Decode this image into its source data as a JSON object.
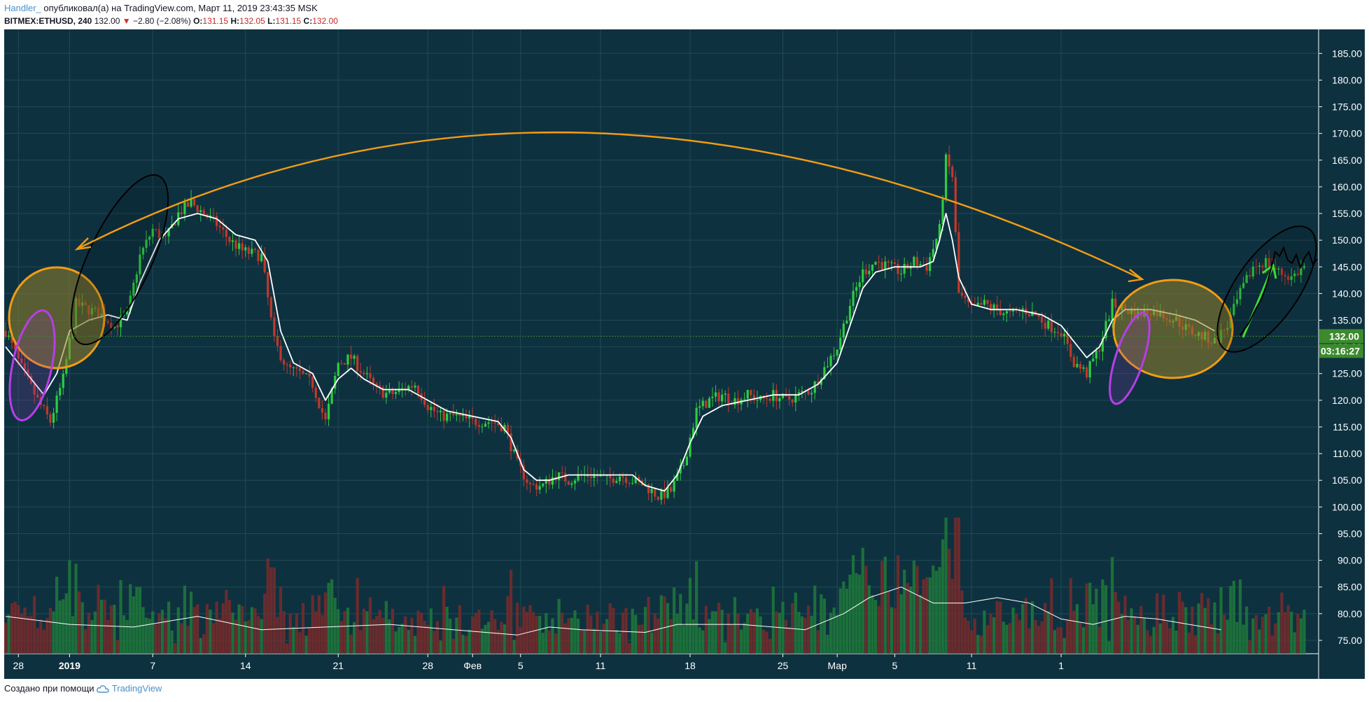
{
  "header": {
    "author": "Handler_",
    "published": "опубликовал(а) на TradingView.com, Март 11, 2019 23:43:35 MSK",
    "symbol": "BITMEX:ETHUSD, 240",
    "last": "132.00",
    "change_arrow": "▼",
    "change": "−2.80 (−2.08%)",
    "o_label": "O:",
    "o": "131.15",
    "h_label": "H:",
    "h": "132.05",
    "l_label": "L:",
    "l": "131.15",
    "c_label": "C:",
    "c": "132.00"
  },
  "footer": {
    "created_with": "Создано при помощи",
    "brand": "TradingView",
    "brand_icon": "tradingview-cloud-icon"
  },
  "colors": {
    "background": "#0e3140",
    "grid": "#1e4a55",
    "up": "#26a69a",
    "up_candle": "#2ecc40",
    "down_candle": "#c0392b",
    "ma_line": "#ffffff",
    "arc": "#f39c12",
    "price_tag": "#3c8a2e",
    "ellipse_orange": "#f39c12",
    "ellipse_purple": "#b73ee6",
    "ellipse_black": "#000000",
    "arrow": "#3ddc37"
  },
  "chart_data": {
    "type": "candlestick",
    "interval": "240",
    "y_ticks": [
      "185.00",
      "180.00",
      "175.00",
      "170.00",
      "165.00",
      "160.00",
      "155.00",
      "150.00",
      "145.00",
      "140.00",
      "135.00",
      "130.00",
      "125.00",
      "120.00",
      "115.00",
      "110.00",
      "105.00",
      "100.00",
      "95.00",
      "90.00",
      "85.00",
      "80.00",
      "75.00"
    ],
    "ylim": [
      72.5,
      189.5
    ],
    "x_ticks": [
      "28",
      "2019",
      "7",
      "14",
      "21",
      "28",
      "Фев",
      "5",
      "11",
      "18",
      "25",
      "Мар",
      "5",
      "11",
      "1"
    ],
    "current_price": "132.00",
    "countdown": "03:16:27",
    "price_path": [
      [
        0,
        133
      ],
      [
        5,
        126
      ],
      [
        10,
        120
      ],
      [
        14,
        116
      ],
      [
        18,
        124
      ],
      [
        22,
        138
      ],
      [
        26,
        137
      ],
      [
        30,
        136
      ],
      [
        34,
        134
      ],
      [
        38,
        136
      ],
      [
        42,
        147
      ],
      [
        46,
        152
      ],
      [
        50,
        150
      ],
      [
        54,
        155
      ],
      [
        58,
        157
      ],
      [
        62,
        155
      ],
      [
        66,
        153
      ],
      [
        70,
        150
      ],
      [
        74,
        148
      ],
      [
        80,
        147
      ],
      [
        84,
        131
      ],
      [
        88,
        126
      ],
      [
        92,
        125
      ],
      [
        96,
        123
      ],
      [
        100,
        116
      ],
      [
        104,
        127
      ],
      [
        108,
        128
      ],
      [
        112,
        125
      ],
      [
        116,
        122
      ],
      [
        120,
        121
      ],
      [
        124,
        122
      ],
      [
        128,
        123
      ],
      [
        132,
        119
      ],
      [
        136,
        117
      ],
      [
        140,
        117
      ],
      [
        146,
        116
      ],
      [
        152,
        116
      ],
      [
        156,
        115
      ],
      [
        160,
        108
      ],
      [
        164,
        104
      ],
      [
        168,
        104
      ],
      [
        172,
        106
      ],
      [
        176,
        105
      ],
      [
        180,
        106
      ],
      [
        184,
        106
      ],
      [
        188,
        105
      ],
      [
        192,
        106
      ],
      [
        196,
        105
      ],
      [
        200,
        104
      ],
      [
        204,
        102
      ],
      [
        208,
        103
      ],
      [
        212,
        108
      ],
      [
        216,
        118
      ],
      [
        220,
        120
      ],
      [
        224,
        121
      ],
      [
        228,
        120
      ],
      [
        232,
        121
      ],
      [
        236,
        120
      ],
      [
        240,
        121
      ],
      [
        244,
        120
      ],
      [
        248,
        121
      ],
      [
        252,
        122
      ],
      [
        256,
        126
      ],
      [
        260,
        130
      ],
      [
        264,
        138
      ],
      [
        268,
        144
      ],
      [
        272,
        146
      ],
      [
        276,
        145
      ],
      [
        280,
        144
      ],
      [
        284,
        146
      ],
      [
        288,
        145
      ],
      [
        292,
        152
      ],
      [
        294,
        165
      ],
      [
        296,
        162
      ],
      [
        298,
        140
      ],
      [
        302,
        137
      ],
      [
        306,
        138
      ],
      [
        310,
        137
      ],
      [
        314,
        136
      ],
      [
        318,
        137
      ],
      [
        322,
        136
      ],
      [
        326,
        134
      ],
      [
        330,
        133
      ],
      [
        334,
        127
      ],
      [
        338,
        125
      ],
      [
        342,
        130
      ],
      [
        346,
        138
      ],
      [
        350,
        137
      ],
      [
        354,
        136
      ],
      [
        358,
        137
      ],
      [
        362,
        136
      ],
      [
        366,
        135
      ],
      [
        370,
        133
      ],
      [
        374,
        132
      ],
      [
        378,
        131
      ],
      [
        382,
        134
      ],
      [
        386,
        140
      ],
      [
        390,
        145
      ],
      [
        394,
        146
      ],
      [
        398,
        144
      ],
      [
        402,
        143
      ],
      [
        406,
        145
      ]
    ],
    "ma_path": [
      [
        0,
        130
      ],
      [
        8,
        124
      ],
      [
        12,
        121
      ],
      [
        16,
        125
      ],
      [
        20,
        133
      ],
      [
        26,
        135
      ],
      [
        32,
        136
      ],
      [
        38,
        135
      ],
      [
        42,
        142
      ],
      [
        48,
        150
      ],
      [
        54,
        154
      ],
      [
        60,
        155
      ],
      [
        66,
        154
      ],
      [
        72,
        151
      ],
      [
        78,
        150
      ],
      [
        82,
        146
      ],
      [
        86,
        133
      ],
      [
        90,
        127
      ],
      [
        96,
        125
      ],
      [
        100,
        120
      ],
      [
        104,
        124
      ],
      [
        108,
        126
      ],
      [
        112,
        124
      ],
      [
        118,
        122
      ],
      [
        126,
        122
      ],
      [
        132,
        120
      ],
      [
        138,
        118
      ],
      [
        146,
        117
      ],
      [
        154,
        116
      ],
      [
        158,
        113
      ],
      [
        162,
        107
      ],
      [
        166,
        105
      ],
      [
        170,
        105
      ],
      [
        176,
        106
      ],
      [
        184,
        106
      ],
      [
        190,
        106
      ],
      [
        196,
        106
      ],
      [
        200,
        104
      ],
      [
        206,
        103
      ],
      [
        210,
        106
      ],
      [
        214,
        112
      ],
      [
        218,
        117
      ],
      [
        224,
        119
      ],
      [
        232,
        120
      ],
      [
        240,
        121
      ],
      [
        248,
        121
      ],
      [
        254,
        123
      ],
      [
        260,
        127
      ],
      [
        264,
        134
      ],
      [
        268,
        141
      ],
      [
        272,
        144
      ],
      [
        278,
        145
      ],
      [
        286,
        145
      ],
      [
        290,
        146
      ],
      [
        292,
        150
      ],
      [
        294,
        155
      ],
      [
        296,
        150
      ],
      [
        298,
        143
      ],
      [
        302,
        138
      ],
      [
        308,
        137
      ],
      [
        316,
        137
      ],
      [
        324,
        136
      ],
      [
        330,
        134
      ],
      [
        334,
        131
      ],
      [
        338,
        128
      ],
      [
        342,
        130
      ],
      [
        346,
        135
      ],
      [
        350,
        137
      ],
      [
        358,
        137
      ],
      [
        366,
        136
      ],
      [
        372,
        135
      ],
      [
        378,
        133
      ]
    ],
    "volume_ma_path": [
      [
        0,
        79.5
      ],
      [
        20,
        78
      ],
      [
        40,
        77.5
      ],
      [
        60,
        79.5
      ],
      [
        80,
        77
      ],
      [
        100,
        77.5
      ],
      [
        120,
        78
      ],
      [
        140,
        77
      ],
      [
        160,
        76
      ],
      [
        170,
        77.5
      ],
      [
        180,
        77
      ],
      [
        200,
        76.5
      ],
      [
        210,
        78
      ],
      [
        230,
        78
      ],
      [
        250,
        77
      ],
      [
        262,
        80
      ],
      [
        270,
        83
      ],
      [
        280,
        85
      ],
      [
        290,
        82
      ],
      [
        300,
        82
      ],
      [
        310,
        83
      ],
      [
        320,
        82
      ],
      [
        330,
        79
      ],
      [
        340,
        78
      ],
      [
        350,
        79.5
      ],
      [
        360,
        79
      ],
      [
        370,
        78
      ],
      [
        380,
        77
      ]
    ]
  }
}
